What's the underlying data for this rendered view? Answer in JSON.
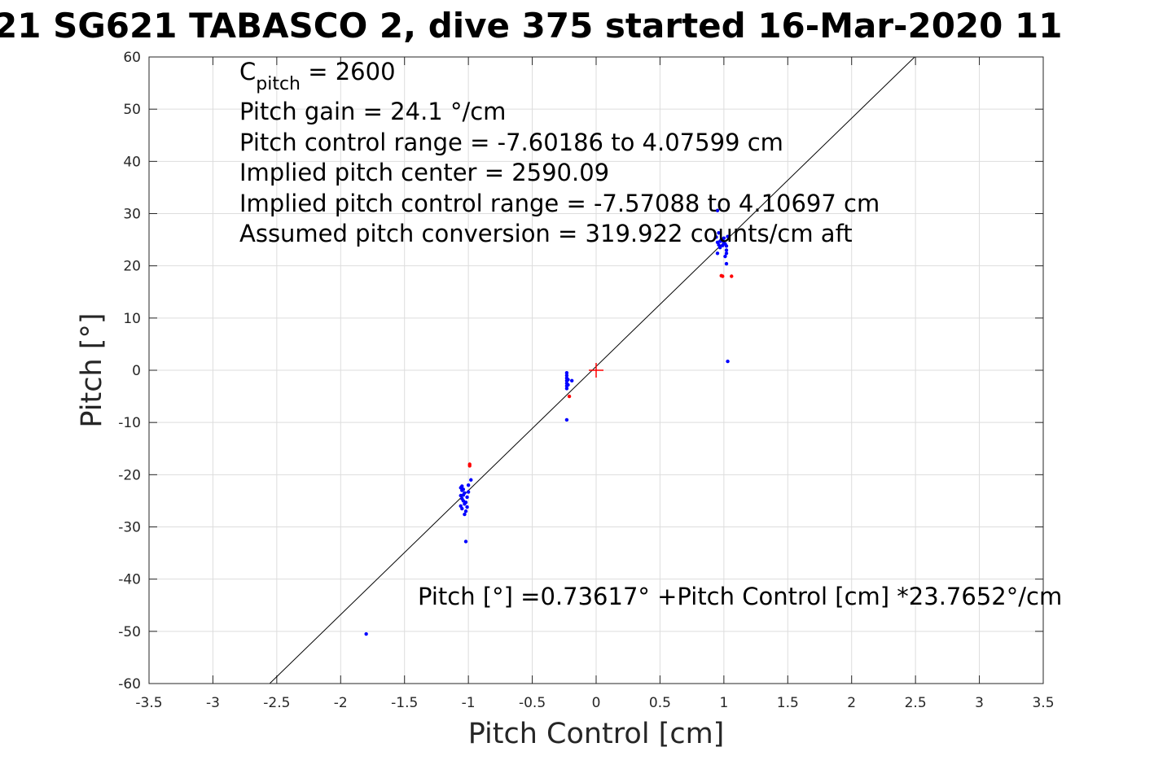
{
  "chart_data": {
    "type": "scatter",
    "title": "21 SG621 TABASCO 2, dive 375 started 16-Mar-2020 11",
    "xlabel": "Pitch Control [cm]",
    "ylabel": "Pitch [°]",
    "xlim": [
      -3.5,
      3.5
    ],
    "ylim": [
      -60,
      60
    ],
    "xticks": [
      -3.5,
      -3,
      -2.5,
      -2,
      -1.5,
      -1,
      -0.5,
      0,
      0.5,
      1,
      1.5,
      2,
      2.5,
      3,
      3.5
    ],
    "yticks": [
      -60,
      -50,
      -40,
      -30,
      -20,
      -10,
      0,
      10,
      20,
      30,
      40,
      50,
      60
    ],
    "xtick_labels": [
      "-3.5",
      "-3",
      "-2.5",
      "-2",
      "-1.5",
      "-1",
      "-0.5",
      "0",
      "0.5",
      "1",
      "1.5",
      "2",
      "2.5",
      "3",
      "3.5"
    ],
    "ytick_labels": [
      "-60",
      "-50",
      "-40",
      "-30",
      "-20",
      "-10",
      "0",
      "10",
      "20",
      "30",
      "40",
      "50",
      "60"
    ],
    "grid": true,
    "colors": {
      "series1": "#0000ff",
      "series2": "#ff0000",
      "fit": "#000000",
      "marker": "#ff0000"
    },
    "series": [
      {
        "color": "#0000ff",
        "points": [
          [
            -1.8,
            -50.5
          ],
          [
            -1.02,
            -32.8
          ],
          [
            -1.06,
            -22.5
          ],
          [
            -1.05,
            -23.0
          ],
          [
            -1.04,
            -22.8
          ],
          [
            -1.03,
            -23.5
          ],
          [
            -1.06,
            -24.0
          ],
          [
            -1.05,
            -24.6
          ],
          [
            -1.04,
            -25.0
          ],
          [
            -1.03,
            -25.6
          ],
          [
            -1.06,
            -26.0
          ],
          [
            -1.05,
            -26.5
          ],
          [
            -1.02,
            -27.0
          ],
          [
            -1.03,
            -27.6
          ],
          [
            -1.01,
            -24.3
          ],
          [
            -1.0,
            -23.3
          ],
          [
            -1.0,
            -22.0
          ],
          [
            -0.98,
            -21.0
          ],
          [
            -1.01,
            -26.2
          ],
          [
            -1.04,
            -23.9
          ],
          [
            -1.02,
            -25.3
          ],
          [
            -1.05,
            -22.2
          ],
          [
            -0.23,
            -0.5
          ],
          [
            -0.23,
            -1.0
          ],
          [
            -0.23,
            -1.5
          ],
          [
            -0.23,
            -2.0
          ],
          [
            -0.23,
            -2.5
          ],
          [
            -0.23,
            -3.0
          ],
          [
            -0.23,
            -3.5
          ],
          [
            -0.22,
            -1.8
          ],
          [
            -0.22,
            -2.8
          ],
          [
            -0.19,
            -2.0
          ],
          [
            -0.23,
            -9.5
          ],
          [
            0.94,
            25.5
          ],
          [
            0.95,
            24.5
          ],
          [
            0.96,
            24.0
          ],
          [
            0.97,
            23.5
          ],
          [
            0.98,
            25.0
          ],
          [
            0.99,
            24.8
          ],
          [
            1.0,
            25.3
          ],
          [
            1.01,
            24.2
          ],
          [
            1.02,
            23.8
          ],
          [
            1.03,
            25.6
          ],
          [
            1.02,
            23.0
          ],
          [
            1.02,
            22.4
          ],
          [
            1.01,
            21.8
          ],
          [
            1.02,
            20.4
          ],
          [
            0.96,
            26.3
          ],
          [
            0.95,
            30.6
          ],
          [
            0.95,
            22.4
          ],
          [
            0.97,
            24.7
          ],
          [
            0.99,
            23.9
          ],
          [
            1.0,
            24.4
          ],
          [
            1.03,
            1.7
          ]
        ]
      },
      {
        "color": "#ff0000",
        "points": [
          [
            -0.99,
            -18.0
          ],
          [
            -0.99,
            -18.3
          ],
          [
            -0.21,
            -5.0
          ],
          [
            0.98,
            18.1
          ],
          [
            0.99,
            18.0
          ],
          [
            1.06,
            18.0
          ]
        ]
      }
    ],
    "fit": {
      "intercept": 0.73617,
      "slope": 23.7652
    },
    "center_marker": [
      0,
      0
    ],
    "annotations": {
      "c_pitch_main": "C",
      "c_pitch_sub": "pitch",
      "c_pitch_rest": " = 2600",
      "lines": [
        "Pitch gain = 24.1 °/cm",
        "Pitch control range = -7.60186 to 4.07599 cm",
        "Implied pitch center = 2590.09",
        "Implied pitch control range = -7.57088 to 4.10697 cm",
        "Assumed pitch conversion = 319.922 counts/cm aft"
      ],
      "fit_equation": "Pitch [°] =0.73617° +Pitch Control [cm] *23.7652°/cm"
    }
  }
}
